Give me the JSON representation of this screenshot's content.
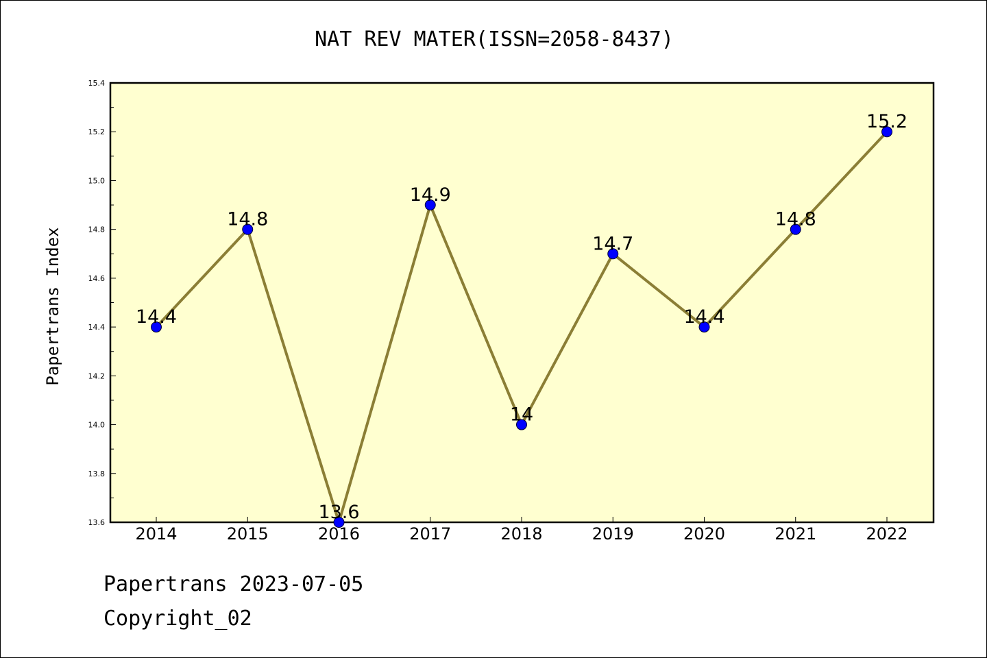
{
  "chart_data": {
    "type": "line",
    "title": "NAT REV MATER(ISSN=2058-8437)",
    "ylabel": "Papertrans Index",
    "xlabel": "",
    "categories": [
      "2014",
      "2015",
      "2016",
      "2017",
      "2018",
      "2019",
      "2020",
      "2021",
      "2022"
    ],
    "values": [
      14.4,
      14.8,
      13.6,
      14.9,
      14.0,
      14.7,
      14.4,
      14.8,
      15.2
    ],
    "data_labels": [
      "14.4",
      "14.8",
      "13.6",
      "14.9",
      "14",
      "14.7",
      "14.4",
      "14.8",
      "15.2"
    ],
    "ylim": [
      13.6,
      15.4
    ],
    "yticks": [
      "13.6",
      "13.8",
      "14.0",
      "14.2",
      "14.4",
      "14.6",
      "14.8",
      "15.0",
      "15.2",
      "15.4"
    ],
    "grid": false,
    "legend": "none",
    "colors": {
      "plot_background": "#ffffd0",
      "line": "#8b7e35",
      "marker": "#0000ff",
      "axis": "#000000"
    }
  },
  "footer": {
    "date_text": "Papertrans 2023-07-05",
    "copyright_text": "Copyright_02"
  }
}
